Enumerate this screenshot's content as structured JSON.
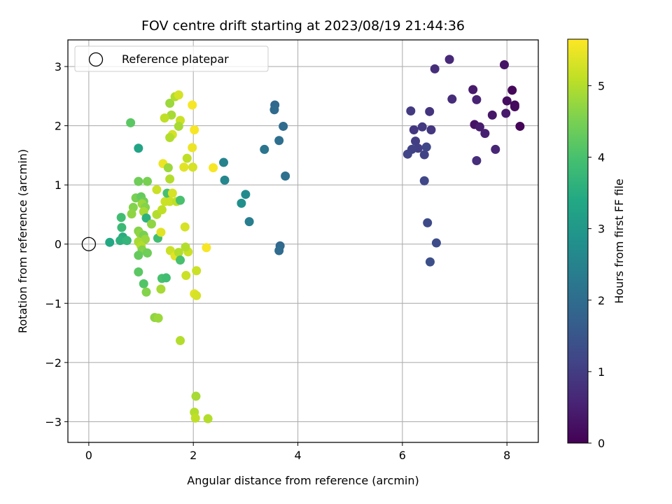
{
  "chart_data": {
    "type": "scatter",
    "title": "FOV centre drift starting at 2023/08/19 21:44:36",
    "xlabel": "Angular distance from reference (arcmin)",
    "ylabel": "Rotation from reference (arcmin)",
    "xlim": [
      -0.4,
      8.6
    ],
    "ylim": [
      -3.35,
      3.45
    ],
    "x_ticks": [
      0,
      2,
      4,
      6,
      8
    ],
    "x_tick_labels": [
      "0",
      "2",
      "4",
      "6",
      "8"
    ],
    "y_ticks": [
      -3,
      -2,
      -1,
      0,
      1,
      2,
      3
    ],
    "y_tick_labels": [
      "−3",
      "−2",
      "−1",
      "0",
      "1",
      "2",
      "3"
    ],
    "grid": true,
    "legend": {
      "placement": "top-left",
      "entries": [
        "Reference platepar"
      ]
    },
    "colorbar": {
      "label": "Hours from first FF file",
      "range": [
        0,
        5.65
      ],
      "ticks": [
        0,
        1,
        2,
        3,
        4,
        5
      ],
      "tick_labels": [
        "0",
        "1",
        "2",
        "3",
        "4",
        "5"
      ],
      "colormap": "viridis"
    },
    "reference_point": {
      "x": 0,
      "y": 0,
      "label": "Reference platepar"
    },
    "points": [
      {
        "x": 8.25,
        "y": 1.99,
        "h": 0.05
      },
      {
        "x": 8.1,
        "y": 2.6,
        "h": 0.1
      },
      {
        "x": 8.15,
        "y": 2.35,
        "h": 0.12
      },
      {
        "x": 8.15,
        "y": 2.32,
        "h": 0.15
      },
      {
        "x": 8.0,
        "y": 2.42,
        "h": 0.2
      },
      {
        "x": 7.95,
        "y": 3.03,
        "h": 0.3
      },
      {
        "x": 7.98,
        "y": 2.21,
        "h": 0.4
      },
      {
        "x": 7.72,
        "y": 2.18,
        "h": 0.35
      },
      {
        "x": 7.38,
        "y": 2.02,
        "h": 0.3
      },
      {
        "x": 7.35,
        "y": 2.61,
        "h": 0.4
      },
      {
        "x": 7.48,
        "y": 1.98,
        "h": 0.45
      },
      {
        "x": 7.58,
        "y": 1.87,
        "h": 0.5
      },
      {
        "x": 7.42,
        "y": 2.44,
        "h": 0.55
      },
      {
        "x": 7.78,
        "y": 1.6,
        "h": 0.6
      },
      {
        "x": 7.42,
        "y": 1.41,
        "h": 0.75
      },
      {
        "x": 6.9,
        "y": 3.12,
        "h": 0.65
      },
      {
        "x": 6.95,
        "y": 2.45,
        "h": 0.7
      },
      {
        "x": 6.62,
        "y": 2.96,
        "h": 0.75
      },
      {
        "x": 6.52,
        "y": 2.24,
        "h": 0.85
      },
      {
        "x": 6.55,
        "y": 1.93,
        "h": 0.9
      },
      {
        "x": 6.38,
        "y": 1.98,
        "h": 0.95
      },
      {
        "x": 6.22,
        "y": 1.93,
        "h": 0.9
      },
      {
        "x": 6.16,
        "y": 2.25,
        "h": 0.95
      },
      {
        "x": 6.25,
        "y": 1.74,
        "h": 1.0
      },
      {
        "x": 6.3,
        "y": 1.62,
        "h": 1.05
      },
      {
        "x": 6.18,
        "y": 1.6,
        "h": 1.1
      },
      {
        "x": 6.1,
        "y": 1.52,
        "h": 1.15
      },
      {
        "x": 6.42,
        "y": 1.51,
        "h": 1.1
      },
      {
        "x": 6.46,
        "y": 1.64,
        "h": 1.2
      },
      {
        "x": 6.42,
        "y": 1.07,
        "h": 1.2
      },
      {
        "x": 6.48,
        "y": 0.36,
        "h": 1.25
      },
      {
        "x": 6.65,
        "y": 0.02,
        "h": 1.3
      },
      {
        "x": 6.53,
        "y": -0.3,
        "h": 1.35
      },
      {
        "x": 3.56,
        "y": 2.35,
        "h": 1.9
      },
      {
        "x": 3.55,
        "y": 2.27,
        "h": 1.95
      },
      {
        "x": 3.72,
        "y": 1.99,
        "h": 2.0
      },
      {
        "x": 3.64,
        "y": 1.75,
        "h": 2.05
      },
      {
        "x": 3.36,
        "y": 1.6,
        "h": 2.2
      },
      {
        "x": 3.76,
        "y": 1.15,
        "h": 2.1
      },
      {
        "x": 3.66,
        "y": -0.03,
        "h": 1.9
      },
      {
        "x": 3.64,
        "y": -0.11,
        "h": 2.0
      },
      {
        "x": 2.58,
        "y": 1.38,
        "h": 2.5
      },
      {
        "x": 2.6,
        "y": 1.08,
        "h": 2.6
      },
      {
        "x": 3.0,
        "y": 0.84,
        "h": 2.7
      },
      {
        "x": 2.92,
        "y": 0.69,
        "h": 2.8
      },
      {
        "x": 3.07,
        "y": 0.38,
        "h": 2.4
      },
      {
        "x": 0.95,
        "y": 1.62,
        "h": 3.3
      },
      {
        "x": 0.8,
        "y": 2.05,
        "h": 4.2
      },
      {
        "x": 0.4,
        "y": 0.03,
        "h": 3.4
      },
      {
        "x": 0.62,
        "y": 0.45,
        "h": 3.9
      },
      {
        "x": 0.63,
        "y": 0.28,
        "h": 3.8
      },
      {
        "x": 0.65,
        "y": 0.12,
        "h": 3.5
      },
      {
        "x": 0.6,
        "y": 0.06,
        "h": 3.6
      },
      {
        "x": 0.73,
        "y": 0.06,
        "h": 3.7
      },
      {
        "x": 0.95,
        "y": 1.06,
        "h": 4.4
      },
      {
        "x": 0.9,
        "y": 0.78,
        "h": 4.5
      },
      {
        "x": 0.85,
        "y": 0.62,
        "h": 4.6
      },
      {
        "x": 0.82,
        "y": 0.51,
        "h": 4.7
      },
      {
        "x": 1.0,
        "y": 0.8,
        "h": 4.3
      },
      {
        "x": 1.05,
        "y": 0.72,
        "h": 4.4
      },
      {
        "x": 1.02,
        "y": 0.68,
        "h": 4.8
      },
      {
        "x": 1.08,
        "y": 0.62,
        "h": 4.6
      },
      {
        "x": 1.05,
        "y": 0.55,
        "h": 4.9
      },
      {
        "x": 1.12,
        "y": 1.06,
        "h": 4.5
      },
      {
        "x": 1.1,
        "y": 0.44,
        "h": 3.6
      },
      {
        "x": 1.2,
        "y": 0.34,
        "h": 4.7
      },
      {
        "x": 0.95,
        "y": 0.22,
        "h": 4.6
      },
      {
        "x": 0.98,
        "y": 0.18,
        "h": 4.7
      },
      {
        "x": 1.05,
        "y": 0.15,
        "h": 4.5
      },
      {
        "x": 1.08,
        "y": 0.08,
        "h": 4.8
      },
      {
        "x": 0.95,
        "y": 0.04,
        "h": 4.9
      },
      {
        "x": 1.0,
        "y": -0.03,
        "h": 5.0
      },
      {
        "x": 1.02,
        "y": -0.1,
        "h": 4.6
      },
      {
        "x": 1.12,
        "y": -0.15,
        "h": 4.4
      },
      {
        "x": 0.95,
        "y": -0.19,
        "h": 4.3
      },
      {
        "x": 0.95,
        "y": -0.47,
        "h": 4.2
      },
      {
        "x": 1.05,
        "y": -0.67,
        "h": 4.1
      },
      {
        "x": 1.1,
        "y": -0.81,
        "h": 4.6
      },
      {
        "x": 1.26,
        "y": -1.24,
        "h": 4.7
      },
      {
        "x": 1.33,
        "y": -1.25,
        "h": 4.8
      },
      {
        "x": 1.4,
        "y": -0.58,
        "h": 4.0
      },
      {
        "x": 1.48,
        "y": -0.57,
        "h": 3.9
      },
      {
        "x": 1.38,
        "y": -0.76,
        "h": 4.9
      },
      {
        "x": 1.32,
        "y": 0.1,
        "h": 3.9
      },
      {
        "x": 1.3,
        "y": 0.5,
        "h": 5.0
      },
      {
        "x": 1.4,
        "y": 0.58,
        "h": 5.1
      },
      {
        "x": 1.38,
        "y": 0.2,
        "h": 5.4
      },
      {
        "x": 1.3,
        "y": 0.92,
        "h": 5.2
      },
      {
        "x": 1.42,
        "y": 1.36,
        "h": 5.5
      },
      {
        "x": 1.46,
        "y": 0.72,
        "h": 5.2
      },
      {
        "x": 1.5,
        "y": 0.86,
        "h": 4.0
      },
      {
        "x": 1.55,
        "y": 0.72,
        "h": 5.2
      },
      {
        "x": 1.6,
        "y": 0.86,
        "h": 5.3
      },
      {
        "x": 1.68,
        "y": 0.72,
        "h": 5.1
      },
      {
        "x": 1.75,
        "y": 0.74,
        "h": 4.0
      },
      {
        "x": 1.52,
        "y": 1.29,
        "h": 4.8
      },
      {
        "x": 1.55,
        "y": 1.1,
        "h": 5.0
      },
      {
        "x": 1.56,
        "y": -0.11,
        "h": 5.2
      },
      {
        "x": 1.65,
        "y": -0.2,
        "h": 5.4
      },
      {
        "x": 1.72,
        "y": -0.14,
        "h": 5.0
      },
      {
        "x": 1.75,
        "y": -0.27,
        "h": 4.0
      },
      {
        "x": 1.9,
        "y": -0.13,
        "h": 5.2
      },
      {
        "x": 1.85,
        "y": -0.05,
        "h": 5.0
      },
      {
        "x": 1.84,
        "y": 0.29,
        "h": 5.3
      },
      {
        "x": 1.86,
        "y": -0.53,
        "h": 5.2
      },
      {
        "x": 1.55,
        "y": 2.38,
        "h": 4.8
      },
      {
        "x": 1.58,
        "y": 2.18,
        "h": 4.9
      },
      {
        "x": 1.65,
        "y": 2.49,
        "h": 5.0
      },
      {
        "x": 1.72,
        "y": 2.52,
        "h": 5.3
      },
      {
        "x": 1.45,
        "y": 2.13,
        "h": 5.1
      },
      {
        "x": 1.75,
        "y": 2.09,
        "h": 5.2
      },
      {
        "x": 1.72,
        "y": 1.99,
        "h": 4.9
      },
      {
        "x": 1.6,
        "y": 1.85,
        "h": 5.3
      },
      {
        "x": 1.55,
        "y": 1.8,
        "h": 5.0
      },
      {
        "x": 1.88,
        "y": 1.45,
        "h": 5.1
      },
      {
        "x": 1.82,
        "y": 1.3,
        "h": 5.4
      },
      {
        "x": 1.99,
        "y": 1.3,
        "h": 5.3
      },
      {
        "x": 1.98,
        "y": 1.63,
        "h": 5.5
      },
      {
        "x": 1.98,
        "y": 2.35,
        "h": 5.6
      },
      {
        "x": 2.02,
        "y": 1.93,
        "h": 5.6
      },
      {
        "x": 2.38,
        "y": 1.29,
        "h": 5.6
      },
      {
        "x": 2.25,
        "y": -0.06,
        "h": 5.6
      },
      {
        "x": 2.06,
        "y": -0.45,
        "h": 5.2
      },
      {
        "x": 2.02,
        "y": -0.84,
        "h": 5.4
      },
      {
        "x": 2.06,
        "y": -0.87,
        "h": 5.3
      },
      {
        "x": 1.75,
        "y": -1.63,
        "h": 5.0
      },
      {
        "x": 2.05,
        "y": -2.57,
        "h": 4.9
      },
      {
        "x": 2.02,
        "y": -2.84,
        "h": 5.0
      },
      {
        "x": 2.04,
        "y": -2.94,
        "h": 5.1
      },
      {
        "x": 2.28,
        "y": -2.95,
        "h": 5.0
      }
    ]
  }
}
